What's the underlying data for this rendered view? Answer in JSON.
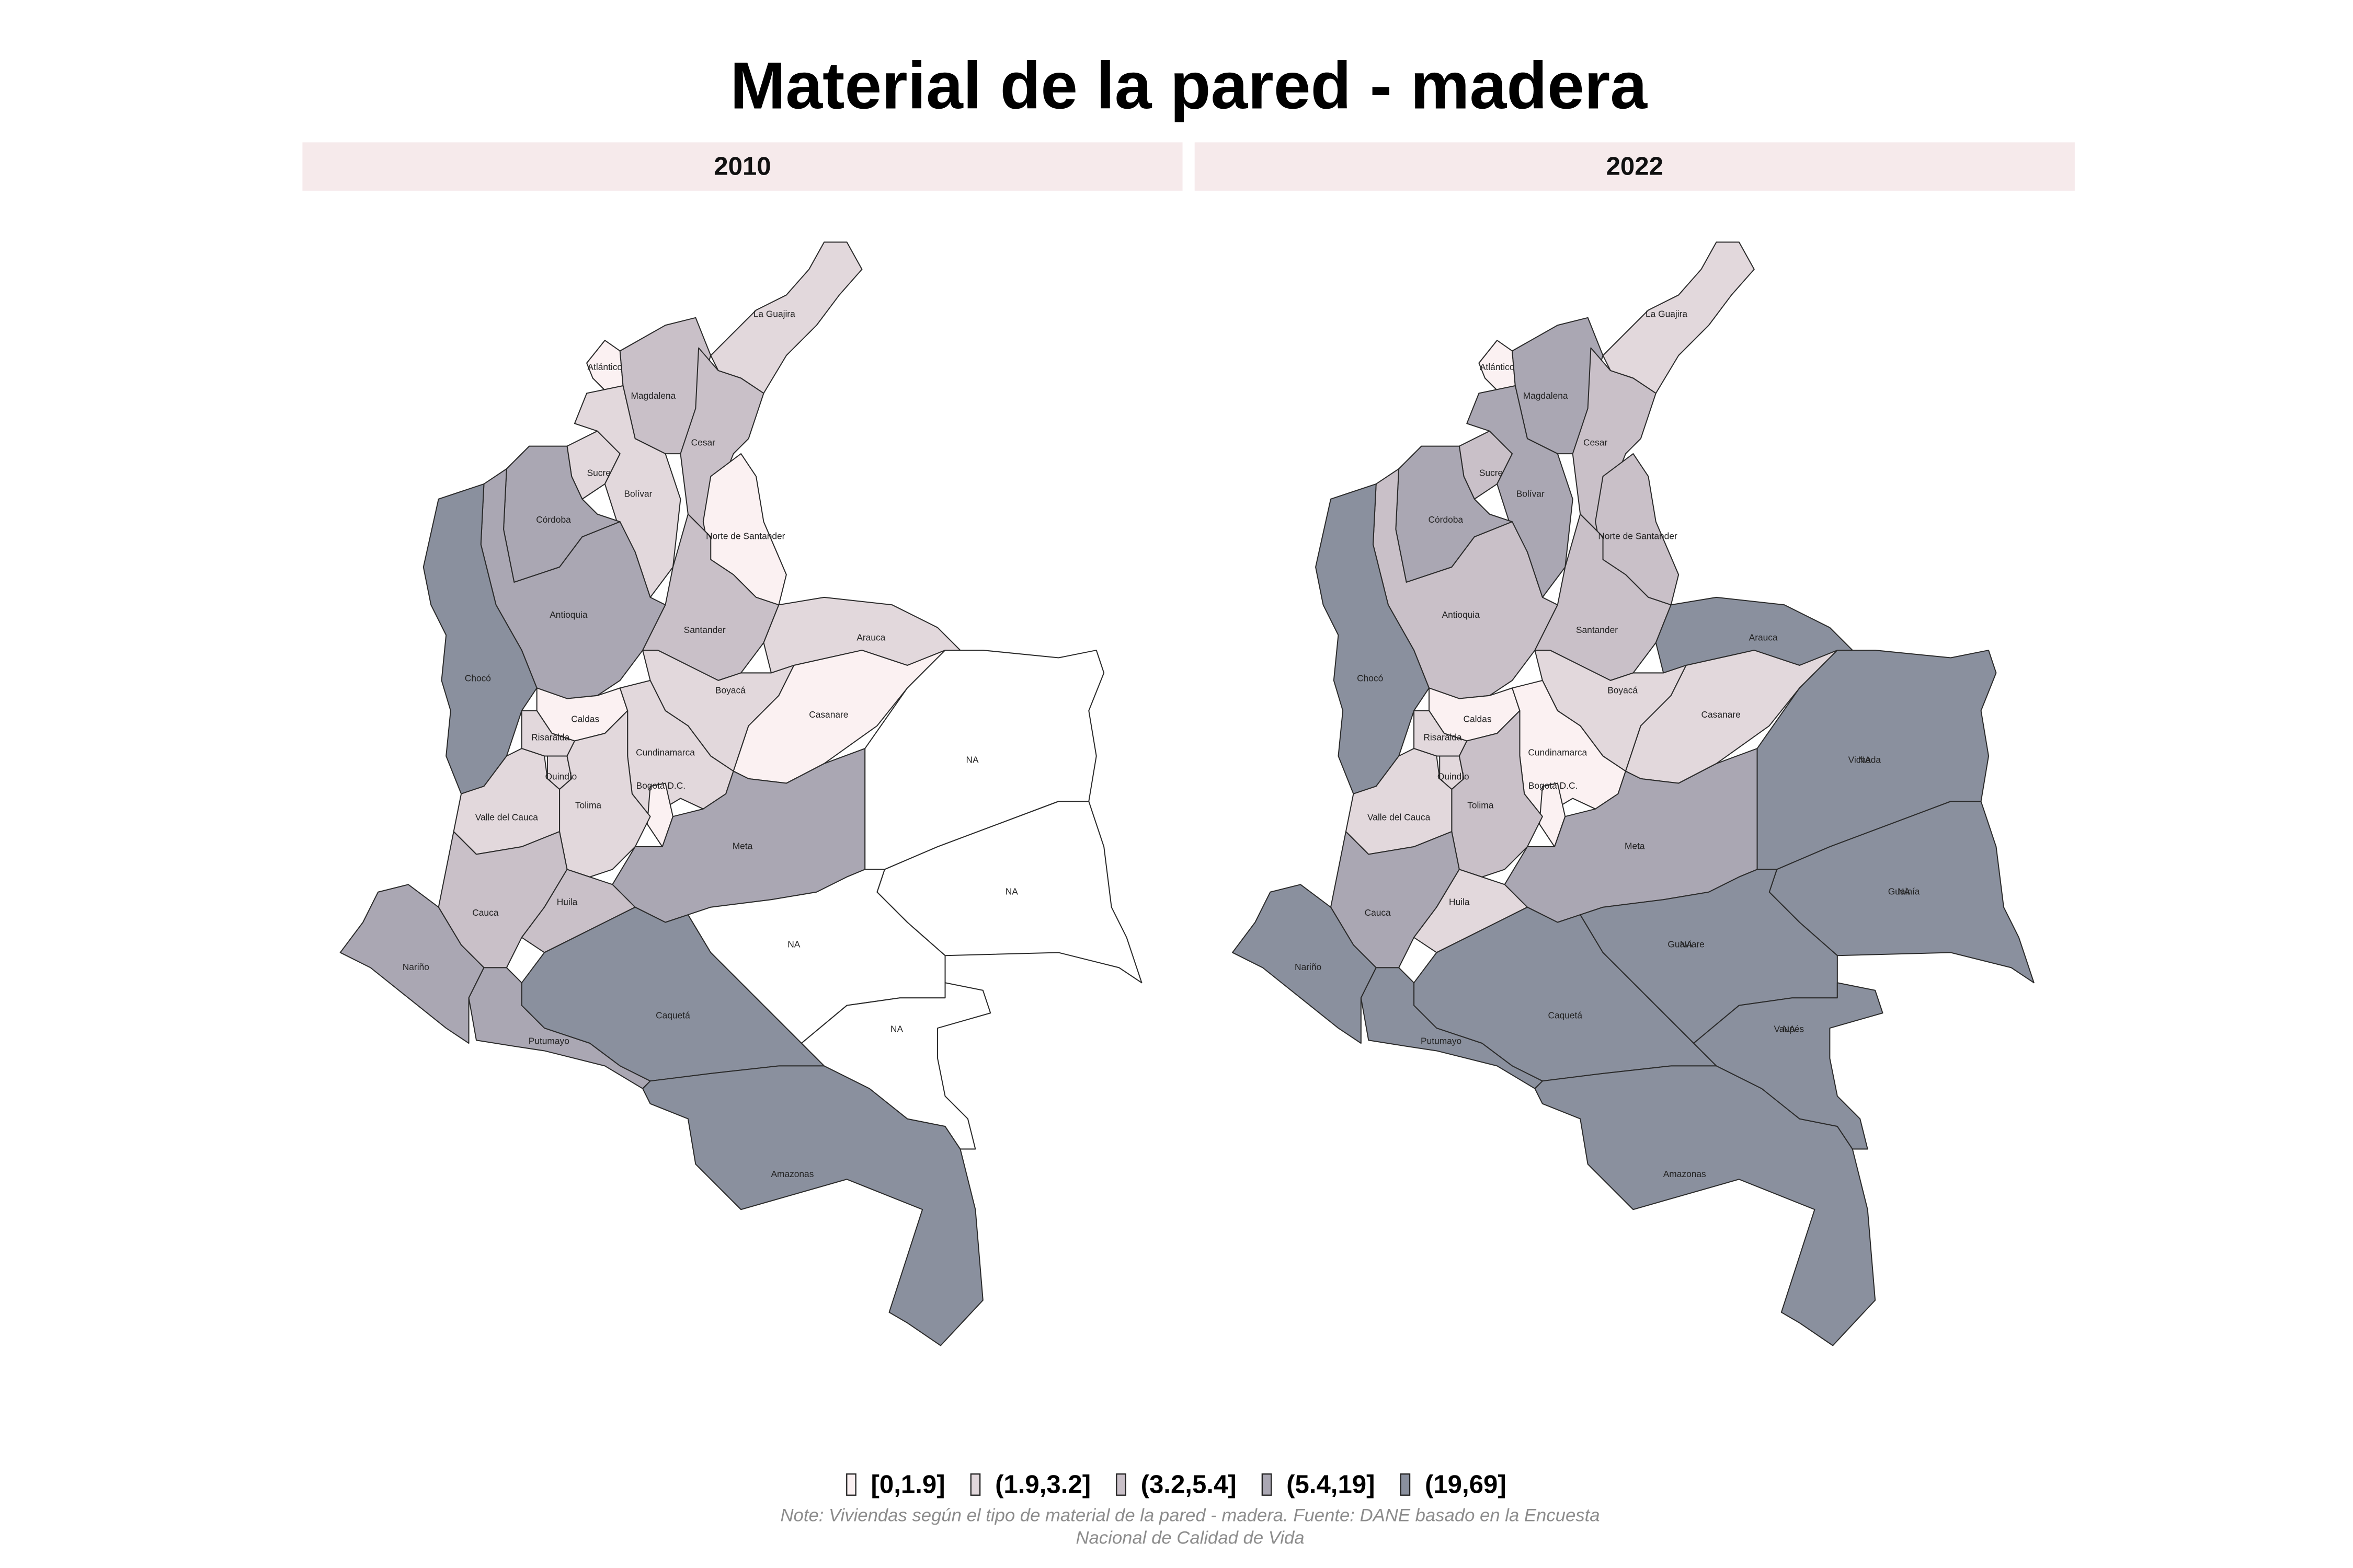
{
  "title": "Material de la pared - madera",
  "na_color": "#ffffff",
  "legend": [
    {
      "label": "[0,1.9]",
      "color": "#fbf1f2"
    },
    {
      "label": "(1.9,3.2]",
      "color": "#e2d8dc"
    },
    {
      "label": "(3.2,5.4]",
      "color": "#c9c0c8"
    },
    {
      "label": "(5.4,19]",
      "color": "#aaa7b3"
    },
    {
      "label": "(19,69]",
      "color": "#8a909e"
    }
  ],
  "panels": [
    {
      "title": "2010",
      "regions": [
        {
          "labels": [
            "La Guajira"
          ],
          "class": "(1.9,3.2]"
        },
        {
          "labels": [
            "Atlántico"
          ],
          "class": "[0,1.9]"
        },
        {
          "labels": [
            "Magdalena"
          ],
          "class": "(3.2,5.4]"
        },
        {
          "labels": [
            "Cesar"
          ],
          "class": "(3.2,5.4]"
        },
        {
          "labels": [
            "Sucre"
          ],
          "class": "(1.9,3.2]"
        },
        {
          "labels": [
            "Bolívar"
          ],
          "class": "(1.9,3.2]"
        },
        {
          "labels": [
            "Córdoba"
          ],
          "class": "(5.4,19]"
        },
        {
          "labels": [
            "Norte de Santander"
          ],
          "class": "[0,1.9]"
        },
        {
          "labels": [
            "Antioquia"
          ],
          "class": "(5.4,19]"
        },
        {
          "labels": [
            "Santander"
          ],
          "class": "(3.2,5.4]"
        },
        {
          "labels": [
            "Arauca"
          ],
          "class": "(1.9,3.2]"
        },
        {
          "labels": [
            "Chocó"
          ],
          "class": "(19,69]"
        },
        {
          "labels": [
            "Boyacá"
          ],
          "class": "(1.9,3.2]"
        },
        {
          "labels": [
            "Casanare"
          ],
          "class": "[0,1.9]"
        },
        {
          "labels": [
            "Caldas"
          ],
          "class": "[0,1.9]"
        },
        {
          "labels": [
            "Risaralda"
          ],
          "class": "(1.9,3.2]"
        },
        {
          "labels": [
            "Cundinamarca"
          ],
          "class": "(1.9,3.2]"
        },
        {
          "labels": [
            "Quindío"
          ],
          "class": "(1.9,3.2]"
        },
        {
          "labels": [
            "Bogotá D.C."
          ],
          "class": "[0,1.9]"
        },
        {
          "labels": [
            "Tolima"
          ],
          "class": "(1.9,3.2]"
        },
        {
          "labels": [
            "Valle del Cauca"
          ],
          "class": "(1.9,3.2]"
        },
        {
          "labels": [
            "Meta"
          ],
          "class": "(5.4,19]"
        },
        {
          "labels": [
            "Cauca"
          ],
          "class": "(3.2,5.4]"
        },
        {
          "labels": [
            "Huila"
          ],
          "class": "(3.2,5.4]"
        },
        {
          "labels": [
            "Nariño"
          ],
          "class": "(5.4,19]"
        },
        {
          "labels": [
            "Caquetá"
          ],
          "class": "(19,69]"
        },
        {
          "labels": [
            "Putumayo"
          ],
          "class": "(5.4,19]"
        },
        {
          "labels": [
            "Amazonas"
          ],
          "class": "(19,69]"
        },
        {
          "labels": [
            "NA"
          ],
          "class": null
        },
        {
          "labels": [
            "NA"
          ],
          "class": null
        },
        {
          "labels": [
            "NA"
          ],
          "class": null
        },
        {
          "labels": [
            "NA"
          ],
          "class": null
        }
      ]
    },
    {
      "title": "2022",
      "regions": [
        {
          "labels": [
            "La Guajira"
          ],
          "class": "(1.9,3.2]"
        },
        {
          "labels": [
            "Atlántico"
          ],
          "class": "[0,1.9]"
        },
        {
          "labels": [
            "Magdalena"
          ],
          "class": "(5.4,19]"
        },
        {
          "labels": [
            "Cesar"
          ],
          "class": "(3.2,5.4]"
        },
        {
          "labels": [
            "Sucre"
          ],
          "class": "(3.2,5.4]"
        },
        {
          "labels": [
            "Bolívar"
          ],
          "class": "(5.4,19]"
        },
        {
          "labels": [
            "Córdoba"
          ],
          "class": "(5.4,19]"
        },
        {
          "labels": [
            "Norte de Santander"
          ],
          "class": "(3.2,5.4]"
        },
        {
          "labels": [
            "Antioquia"
          ],
          "class": "(3.2,5.4]"
        },
        {
          "labels": [
            "Santander"
          ],
          "class": "(3.2,5.4]"
        },
        {
          "labels": [
            "Arauca"
          ],
          "class": "(19,69]"
        },
        {
          "labels": [
            "Chocó"
          ],
          "class": "(19,69]"
        },
        {
          "labels": [
            "Boyacá"
          ],
          "class": "(1.9,3.2]"
        },
        {
          "labels": [
            "Casanare"
          ],
          "class": "(1.9,3.2]"
        },
        {
          "labels": [
            "Caldas"
          ],
          "class": "[0,1.9]"
        },
        {
          "labels": [
            "Risaralda"
          ],
          "class": "(1.9,3.2]"
        },
        {
          "labels": [
            "Cundinamarca"
          ],
          "class": "[0,1.9]"
        },
        {
          "labels": [
            "Quindío"
          ],
          "class": "(1.9,3.2]"
        },
        {
          "labels": [
            "Bogotá D.C."
          ],
          "class": "[0,1.9]"
        },
        {
          "labels": [
            "Tolima"
          ],
          "class": "(3.2,5.4]"
        },
        {
          "labels": [
            "Valle del Cauca"
          ],
          "class": "(1.9,3.2]"
        },
        {
          "labels": [
            "Meta"
          ],
          "class": "(5.4,19]"
        },
        {
          "labels": [
            "Cauca"
          ],
          "class": "(5.4,19]"
        },
        {
          "labels": [
            "Huila"
          ],
          "class": "(1.9,3.2]"
        },
        {
          "labels": [
            "Nariño"
          ],
          "class": "(19,69]"
        },
        {
          "labels": [
            "Caquetá"
          ],
          "class": "(19,69]"
        },
        {
          "labels": [
            "Putumayo"
          ],
          "class": "(19,69]"
        },
        {
          "labels": [
            "Amazonas"
          ],
          "class": "(19,69]"
        },
        {
          "labels": [
            "Vichada",
            "NA"
          ],
          "class": "(19,69]"
        },
        {
          "labels": [
            "Guainía",
            "NA"
          ],
          "class": "(19,69]"
        },
        {
          "labels": [
            "Guaviare",
            "NA"
          ],
          "class": "(19,69]"
        },
        {
          "labels": [
            "Vaupés",
            "NA"
          ],
          "class": "(19,69]"
        }
      ]
    }
  ],
  "note": [
    "Note: Viviendas según el tipo de material de la pared - madera. Fuente: DANE basado en la Encuesta",
    "Nacional de Calidad de Vida"
  ]
}
